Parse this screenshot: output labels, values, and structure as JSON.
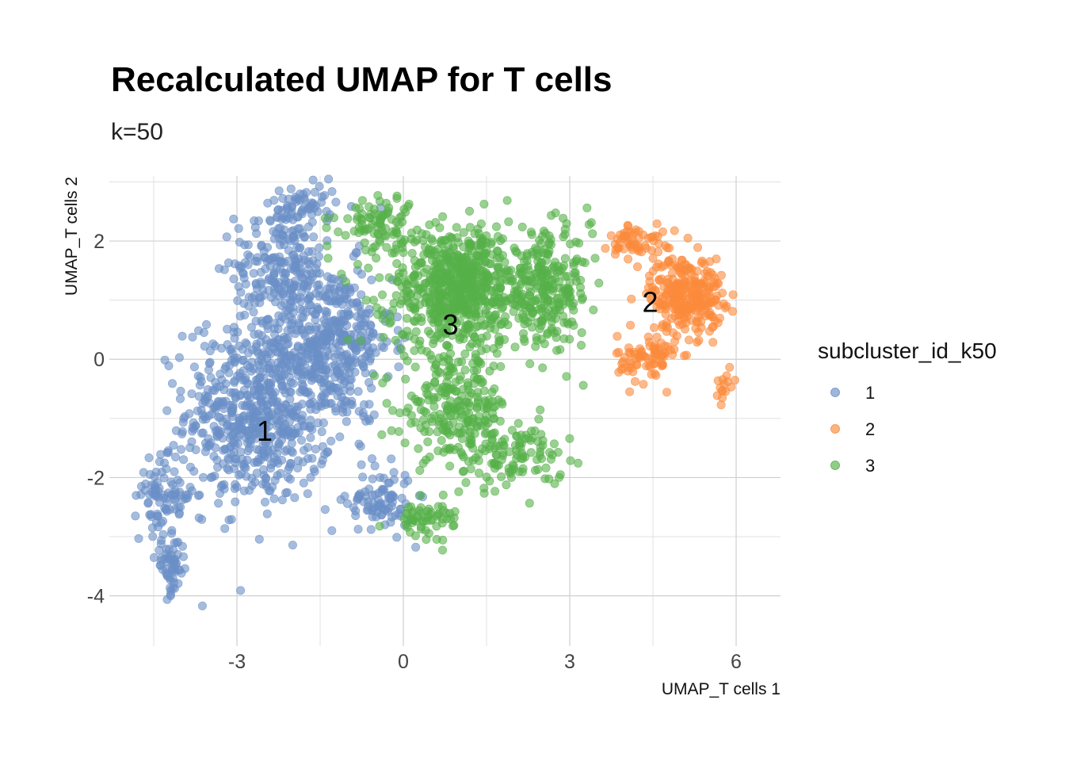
{
  "chart_data": {
    "type": "scatter",
    "title": "Recalculated UMAP for T cells",
    "subtitle": "k=50",
    "xlabel": "UMAP_T cells 1",
    "ylabel": "UMAP_T cells 2",
    "xlim": [
      -5.3,
      6.8
    ],
    "ylim": [
      -4.85,
      3.1
    ],
    "xticks": [
      -3,
      0,
      3,
      6
    ],
    "yticks": [
      2,
      0,
      -2,
      -4
    ],
    "xtick_labels": [
      "-3",
      "0",
      "3",
      "6"
    ],
    "ytick_labels": [
      "2",
      "0",
      "-2",
      "-4"
    ],
    "grid": true,
    "legend": {
      "title": "subcluster_id_k50",
      "position": "right"
    },
    "series": [
      {
        "name": "1",
        "color": "#6a8fc7",
        "label_position": [
          -2.5,
          -1.22
        ],
        "regions": [
          {
            "center": [
              -2.6,
              -0.9
            ],
            "spread": [
              1.1,
              1.3
            ],
            "count": 650
          },
          {
            "center": [
              -1.3,
              0.3
            ],
            "spread": [
              0.9,
              1.1
            ],
            "count": 420
          },
          {
            "center": [
              -2.2,
              1.6
            ],
            "spread": [
              0.7,
              0.8
            ],
            "count": 200
          },
          {
            "center": [
              -4.3,
              -2.3
            ],
            "spread": [
              0.45,
              0.5
            ],
            "count": 90
          },
          {
            "center": [
              -4.2,
              -3.5
            ],
            "spread": [
              0.22,
              0.4
            ],
            "count": 60
          },
          {
            "center": [
              -0.4,
              -2.4
            ],
            "spread": [
              0.5,
              0.45
            ],
            "count": 90
          },
          {
            "center": [
              -1.8,
              2.6
            ],
            "spread": [
              0.5,
              0.3
            ],
            "count": 60
          }
        ]
      },
      {
        "name": "2",
        "color": "#fb8b3c",
        "label_position": [
          4.45,
          0.96
        ],
        "regions": [
          {
            "center": [
              5.1,
              1.1
            ],
            "spread": [
              0.55,
              0.55
            ],
            "count": 280
          },
          {
            "center": [
              4.4,
              0.0
            ],
            "spread": [
              0.45,
              0.35
            ],
            "count": 80
          },
          {
            "center": [
              4.2,
              2.0
            ],
            "spread": [
              0.4,
              0.25
            ],
            "count": 60
          },
          {
            "center": [
              5.8,
              -0.4
            ],
            "spread": [
              0.15,
              0.25
            ],
            "count": 15
          }
        ]
      },
      {
        "name": "3",
        "color": "#56b04a",
        "label_position": [
          0.85,
          0.58
        ],
        "regions": [
          {
            "center": [
              1.0,
              1.2
            ],
            "spread": [
              1.1,
              0.85
            ],
            "count": 700
          },
          {
            "center": [
              2.6,
              1.2
            ],
            "spread": [
              0.65,
              0.8
            ],
            "count": 240
          },
          {
            "center": [
              0.9,
              -0.8
            ],
            "spread": [
              0.8,
              0.7
            ],
            "count": 220
          },
          {
            "center": [
              1.9,
              -1.6
            ],
            "spread": [
              0.8,
              0.5
            ],
            "count": 130
          },
          {
            "center": [
              0.4,
              -2.7
            ],
            "spread": [
              0.5,
              0.25
            ],
            "count": 60
          },
          {
            "center": [
              -0.5,
              2.3
            ],
            "spread": [
              0.6,
              0.4
            ],
            "count": 90
          }
        ]
      }
    ]
  }
}
